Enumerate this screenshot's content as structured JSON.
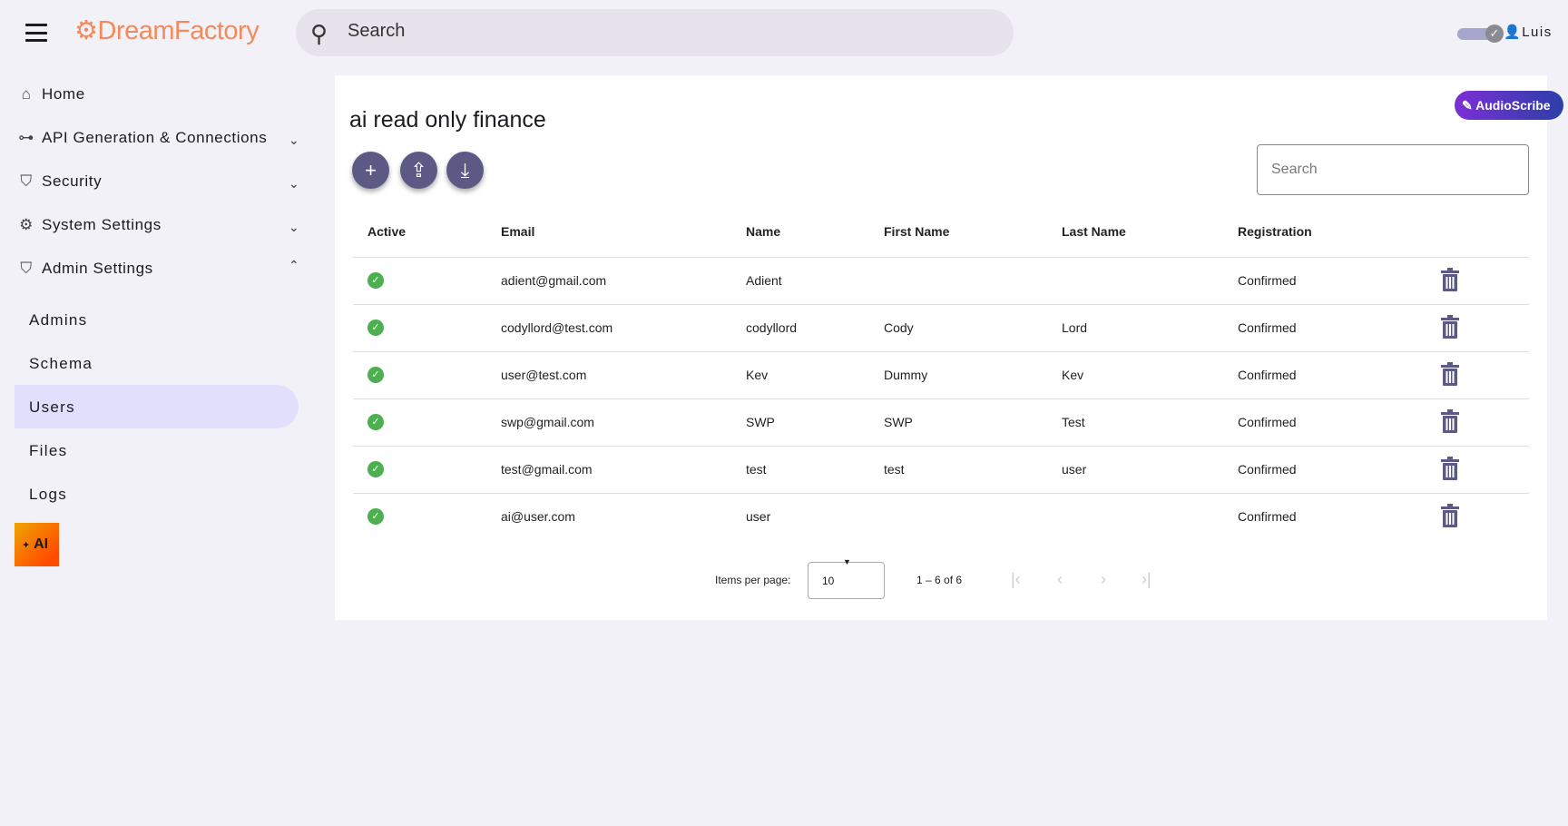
{
  "header": {
    "logo": "DreamFactory",
    "search_placeholder": "Search",
    "user_name": "Luis"
  },
  "sidebar": {
    "items": [
      {
        "label": "Home",
        "icon": "home-icon"
      },
      {
        "label": "API Generation & Connections",
        "icon": "api-icon"
      },
      {
        "label": "Security",
        "icon": "shield-icon"
      },
      {
        "label": "System Settings",
        "icon": "gear-icon"
      },
      {
        "label": "Admin Settings",
        "icon": "admin-shield-icon"
      }
    ],
    "sub_items": [
      "Admins",
      "Schema",
      "Users",
      "Files",
      "Logs"
    ],
    "selected": "Users",
    "ai_label": "AI"
  },
  "main": {
    "title": "ai read only finance",
    "audioscribe_label": "AudioScribe",
    "search_placeholder": "Search",
    "columns": [
      "Active",
      "Email",
      "Name",
      "First Name",
      "Last Name",
      "Registration"
    ],
    "rows": [
      {
        "active": true,
        "email": "adient@gmail.com",
        "name": "Adient",
        "first": "",
        "last": "",
        "registration": "Confirmed"
      },
      {
        "active": true,
        "email": "codyllord@test.com",
        "name": "codyllord",
        "first": "Cody",
        "last": "Lord",
        "registration": "Confirmed"
      },
      {
        "active": true,
        "email": "user@test.com",
        "name": "Kev",
        "first": "Dummy",
        "last": "Kev",
        "registration": "Confirmed"
      },
      {
        "active": true,
        "email": "swp@gmail.com",
        "name": "SWP",
        "first": "SWP",
        "last": "Test",
        "registration": "Confirmed"
      },
      {
        "active": true,
        "email": "test@gmail.com",
        "name": "test",
        "first": "test",
        "last": "user",
        "registration": "Confirmed"
      },
      {
        "active": true,
        "email": "ai@user.com",
        "name": "user",
        "first": "",
        "last": "",
        "registration": "Confirmed"
      }
    ],
    "pagination": {
      "items_per_page_label": "Items per page:",
      "items_per_page": "10",
      "range": "1 – 6 of 6"
    }
  },
  "colors": {
    "accent": "#5c5a85",
    "logo": "#f28a5c",
    "selected": "#e1dffc",
    "active": "#4caf50"
  }
}
